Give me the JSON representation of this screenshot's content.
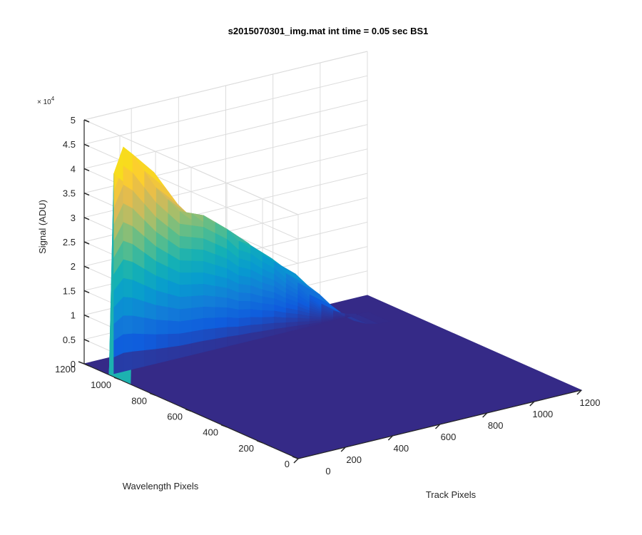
{
  "chart_data": {
    "type": "surface3d",
    "title": "s2015070301_img.mat int time = 0.05 sec   BS1",
    "xlabel": "Track Pixels",
    "ylabel": "Wavelength Pixels",
    "zlabel": "Signal (ADU)",
    "z_exponent_prefix": "× 10",
    "z_exponent_power": "4",
    "xlim": [
      0,
      1200
    ],
    "ylim": [
      0,
      1200
    ],
    "zlim": [
      0,
      50000
    ],
    "x_ticks": [
      "0",
      "200",
      "400",
      "600",
      "800",
      "1000",
      "1200"
    ],
    "y_ticks": [
      "0",
      "200",
      "400",
      "600",
      "800",
      "1000",
      "1200"
    ],
    "z_ticks": [
      "0",
      "0.5",
      "1",
      "1.5",
      "2",
      "2.5",
      "3",
      "3.5",
      "4",
      "4.5",
      "5"
    ],
    "colormap": "parula",
    "grid": true,
    "floor_value": 0,
    "ridge_profile": {
      "description_units": "x = Track Pixels (data), y_start/y_end = Wavelength Pixels (data), peak = Signal (ADU)",
      "y_start": 1060,
      "y_end": 940,
      "x": [
        0,
        20,
        60,
        100,
        150,
        200,
        250,
        300,
        350,
        400,
        450,
        500,
        550,
        600,
        650,
        700,
        750,
        800,
        850,
        900,
        950,
        1000,
        1050,
        1100
      ],
      "peak": [
        0,
        41000,
        46000,
        44000,
        40000,
        36000,
        33000,
        30000,
        29000,
        28000,
        26000,
        24000,
        21000,
        19500,
        17000,
        15000,
        12000,
        9500,
        6500,
        4000,
        2000,
        800,
        200,
        0
      ]
    }
  }
}
